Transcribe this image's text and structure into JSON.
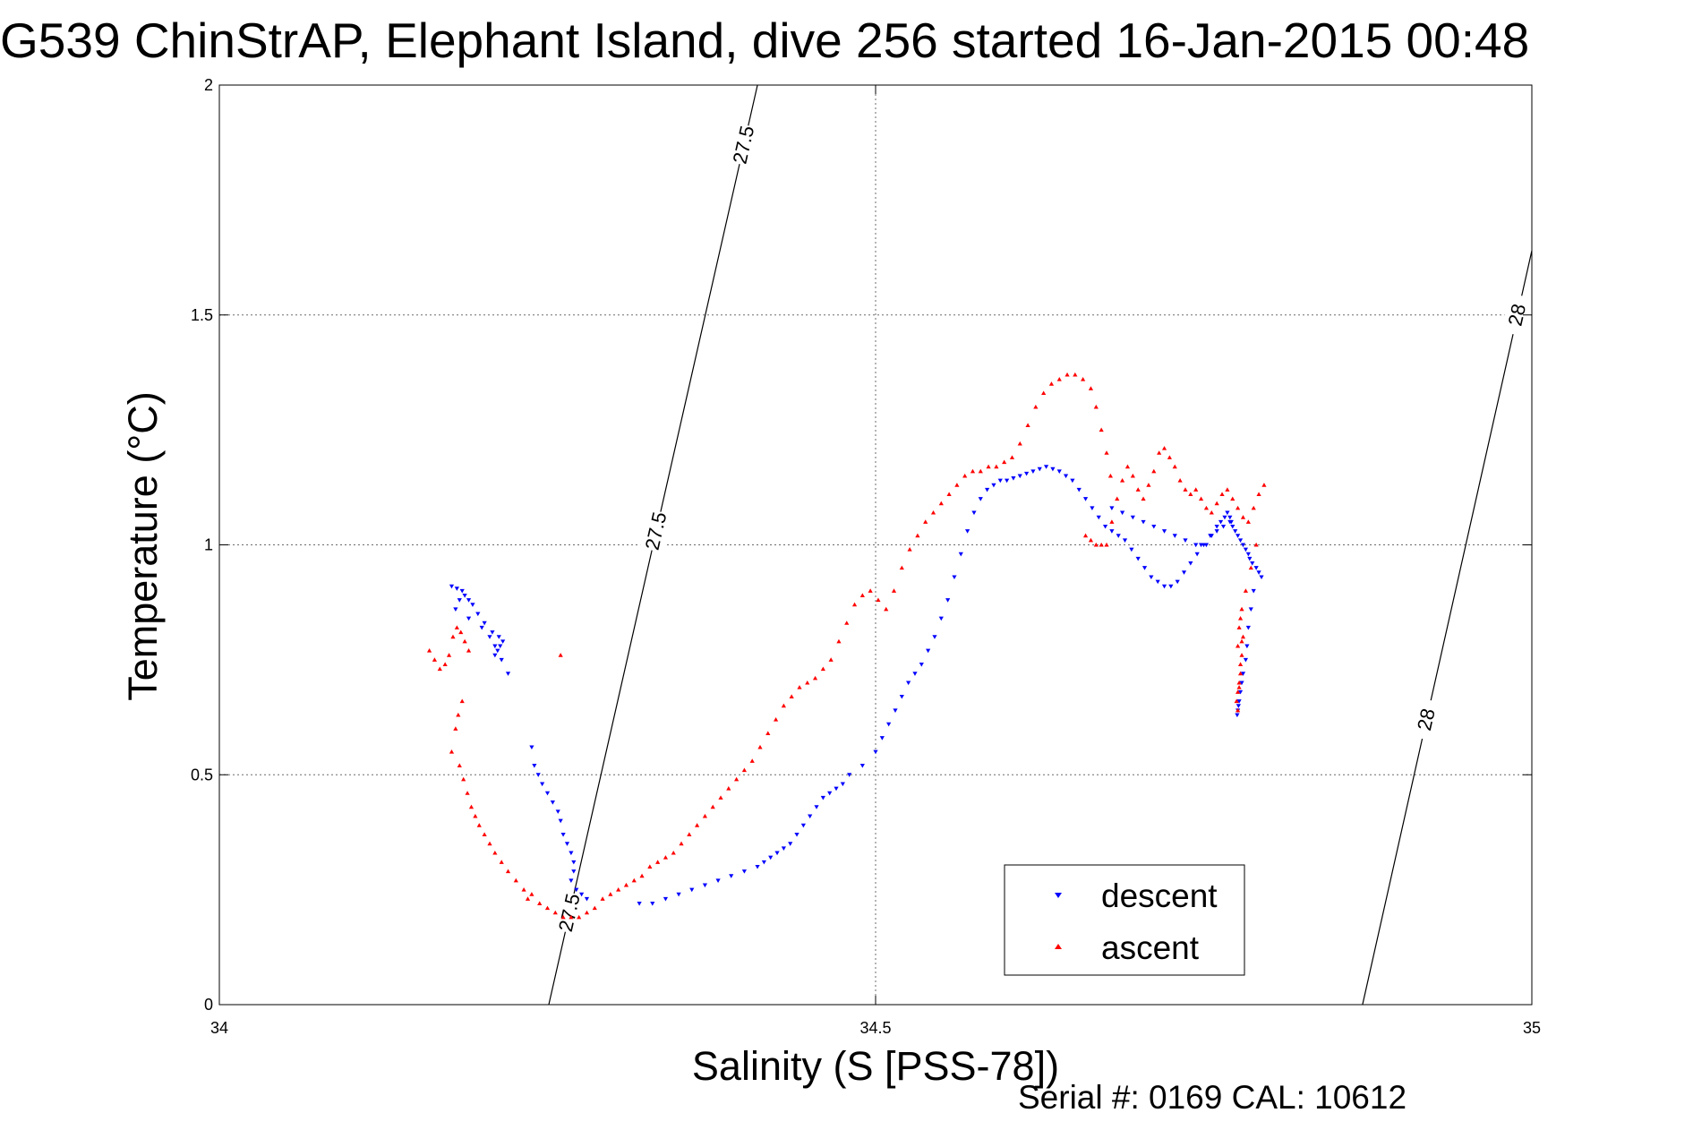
{
  "title": "G539 ChinStrAP, Elephant Island, dive 256 started 16-Jan-2015 00:48",
  "footer": "Serial #: 0169 CAL: 10612",
  "chart_data": {
    "type": "scatter",
    "title": "G539 ChinStrAP, Elephant Island, dive 256 started 16-Jan-2015 00:48",
    "xlabel": "Salinity (S [PSS-78])",
    "ylabel": "Temperature (°C)",
    "xlim": [
      34,
      35
    ],
    "ylim": [
      0,
      2
    ],
    "xticks": [
      "34",
      "34.5",
      "35"
    ],
    "yticks": [
      "0",
      "0.5",
      "1",
      "1.5",
      "2"
    ],
    "grid": true,
    "legend_position": "bottom-right",
    "legend": [
      "descent",
      "ascent"
    ],
    "isopycnals": [
      {
        "level": "27.5",
        "points": [
          [
            34.251,
            0.0
          ],
          [
            34.41,
            2.0
          ]
        ],
        "labels_at_y": [
          0.2,
          1.03,
          1.87
        ]
      },
      {
        "level": "28",
        "points": [
          [
            34.871,
            0.0
          ],
          [
            35.0,
            1.64
          ]
        ],
        "labels_at_y": [
          0.62,
          1.5
        ]
      }
    ],
    "series": [
      {
        "name": "descent",
        "marker": "triangle-down",
        "color": "#0000ff",
        "x": [
          34.177,
          34.181,
          34.185,
          34.187,
          34.19,
          34.193,
          34.197,
          34.202,
          34.206,
          34.21,
          34.215,
          34.22,
          34.183,
          34.18,
          34.19,
          34.2,
          34.208,
          34.213,
          34.216,
          34.214,
          34.212,
          34.21,
          34.238,
          34.24,
          34.243,
          34.246,
          34.25,
          34.254,
          34.258,
          34.26,
          34.262,
          34.265,
          34.268,
          34.27,
          34.27,
          34.268,
          34.272,
          34.276,
          34.28,
          34.32,
          34.33,
          34.34,
          34.35,
          34.36,
          34.37,
          34.38,
          34.39,
          34.4,
          34.41,
          34.415,
          34.42,
          34.425,
          34.43,
          34.435,
          34.44,
          34.445,
          34.45,
          34.455,
          34.46,
          34.465,
          34.47,
          34.475,
          34.48,
          34.49,
          34.5,
          34.505,
          34.51,
          34.515,
          34.52,
          34.525,
          34.53,
          34.535,
          34.54,
          34.545,
          34.55,
          34.555,
          34.56,
          34.565,
          34.57,
          34.575,
          34.58,
          34.585,
          34.59,
          34.595,
          34.6,
          34.605,
          34.61,
          34.615,
          34.62,
          34.625,
          34.63,
          34.635,
          34.64,
          34.645,
          34.65,
          34.655,
          34.66,
          34.665,
          34.67,
          34.675,
          34.68,
          34.685,
          34.69,
          34.695,
          34.7,
          34.705,
          34.71,
          34.715,
          34.72,
          34.725,
          34.73,
          34.735,
          34.74,
          34.745,
          34.75,
          34.755,
          34.76,
          34.765,
          34.77,
          34.68,
          34.688,
          34.696,
          34.704,
          34.712,
          34.72,
          34.728,
          34.736,
          34.744,
          34.748,
          34.752,
          34.756,
          34.76,
          34.763,
          34.766,
          34.768,
          34.77,
          34.771,
          34.772,
          34.774,
          34.776,
          34.778,
          34.78,
          34.782,
          34.784,
          34.785,
          34.787,
          34.79,
          34.792,
          34.794,
          34.788,
          34.786,
          34.784,
          34.783,
          34.782,
          34.78,
          34.779,
          34.778,
          34.777,
          34.776,
          34.7755,
          34.7765
        ],
        "y": [
          0.91,
          0.905,
          0.9,
          0.89,
          0.88,
          0.87,
          0.85,
          0.83,
          0.8,
          0.78,
          0.75,
          0.72,
          0.88,
          0.86,
          0.84,
          0.82,
          0.81,
          0.8,
          0.79,
          0.78,
          0.77,
          0.76,
          0.56,
          0.52,
          0.5,
          0.48,
          0.46,
          0.44,
          0.42,
          0.4,
          0.37,
          0.35,
          0.33,
          0.31,
          0.29,
          0.27,
          0.25,
          0.24,
          0.23,
          0.22,
          0.22,
          0.23,
          0.24,
          0.25,
          0.26,
          0.27,
          0.28,
          0.29,
          0.3,
          0.31,
          0.32,
          0.33,
          0.34,
          0.35,
          0.37,
          0.39,
          0.41,
          0.43,
          0.45,
          0.46,
          0.47,
          0.48,
          0.5,
          0.52,
          0.55,
          0.58,
          0.61,
          0.64,
          0.67,
          0.7,
          0.72,
          0.74,
          0.77,
          0.8,
          0.84,
          0.88,
          0.93,
          0.98,
          1.03,
          1.07,
          1.1,
          1.12,
          1.13,
          1.14,
          1.14,
          1.145,
          1.15,
          1.155,
          1.16,
          1.165,
          1.17,
          1.165,
          1.16,
          1.15,
          1.14,
          1.12,
          1.1,
          1.08,
          1.06,
          1.04,
          1.03,
          1.02,
          1.01,
          0.99,
          0.97,
          0.95,
          0.93,
          0.92,
          0.91,
          0.91,
          0.92,
          0.94,
          0.96,
          0.98,
          1.0,
          1.02,
          1.03,
          1.04,
          1.05,
          1.08,
          1.07,
          1.06,
          1.05,
          1.04,
          1.03,
          1.02,
          1.01,
          1.0,
          1.0,
          1.0,
          1.02,
          1.04,
          1.05,
          1.06,
          1.07,
          1.06,
          1.05,
          1.04,
          1.03,
          1.02,
          1.01,
          1.0,
          0.99,
          0.98,
          0.97,
          0.96,
          0.95,
          0.94,
          0.93,
          0.9,
          0.86,
          0.82,
          0.78,
          0.75,
          0.72,
          0.7,
          0.68,
          0.66,
          0.64,
          0.63,
          0.65
        ]
      },
      {
        "name": "ascent",
        "marker": "triangle-up",
        "color": "#ff0000",
        "x": [
          34.16,
          34.164,
          34.168,
          34.172,
          34.175,
          34.178,
          34.181,
          34.184,
          34.187,
          34.19,
          34.185,
          34.182,
          34.18,
          34.177,
          34.183,
          34.186,
          34.189,
          34.192,
          34.195,
          34.198,
          34.202,
          34.206,
          34.21,
          34.215,
          34.22,
          34.226,
          34.232,
          34.238,
          34.244,
          34.25,
          34.256,
          34.262,
          34.268,
          34.274,
          34.28,
          34.286,
          34.292,
          34.298,
          34.304,
          34.31,
          34.316,
          34.322,
          34.328,
          34.334,
          34.34,
          34.346,
          34.352,
          34.358,
          34.364,
          34.37,
          34.376,
          34.382,
          34.388,
          34.394,
          34.4,
          34.406,
          34.412,
          34.418,
          34.424,
          34.43,
          34.436,
          34.442,
          34.448,
          34.454,
          34.46,
          34.466,
          34.472,
          34.478,
          34.484,
          34.49,
          34.496,
          34.502,
          34.508,
          34.514,
          34.52,
          34.526,
          34.532,
          34.538,
          34.544,
          34.55,
          34.556,
          34.562,
          34.568,
          34.574,
          34.58,
          34.586,
          34.592,
          34.598,
          34.604,
          34.61,
          34.616,
          34.622,
          34.628,
          34.634,
          34.64,
          34.646,
          34.652,
          34.658,
          34.664,
          34.668,
          34.672,
          34.676,
          34.679,
          34.66,
          34.664,
          34.668,
          34.672,
          34.676,
          34.68,
          34.684,
          34.688,
          34.692,
          34.696,
          34.7,
          34.704,
          34.708,
          34.712,
          34.716,
          34.72,
          34.724,
          34.728,
          34.732,
          34.736,
          34.74,
          34.744,
          34.748,
          34.752,
          34.756,
          34.76,
          34.764,
          34.768,
          34.772,
          34.776,
          34.78,
          34.784,
          34.788,
          34.792,
          34.796,
          34.79,
          34.786,
          34.782,
          34.779,
          34.777,
          34.776,
          34.778,
          34.78,
          34.779,
          34.778,
          34.777,
          34.776,
          34.775,
          34.776,
          34.777,
          34.778,
          34.779,
          34.26,
          34.235
        ],
        "y": [
          0.77,
          0.75,
          0.73,
          0.74,
          0.76,
          0.8,
          0.82,
          0.81,
          0.79,
          0.77,
          0.66,
          0.63,
          0.6,
          0.55,
          0.52,
          0.49,
          0.46,
          0.43,
          0.41,
          0.39,
          0.37,
          0.35,
          0.33,
          0.31,
          0.29,
          0.27,
          0.25,
          0.24,
          0.22,
          0.21,
          0.2,
          0.19,
          0.19,
          0.19,
          0.2,
          0.21,
          0.23,
          0.24,
          0.25,
          0.26,
          0.27,
          0.28,
          0.3,
          0.31,
          0.32,
          0.33,
          0.35,
          0.37,
          0.39,
          0.41,
          0.43,
          0.45,
          0.47,
          0.49,
          0.51,
          0.53,
          0.56,
          0.59,
          0.62,
          0.65,
          0.67,
          0.69,
          0.7,
          0.71,
          0.73,
          0.75,
          0.79,
          0.83,
          0.87,
          0.89,
          0.9,
          0.88,
          0.86,
          0.9,
          0.95,
          0.99,
          1.02,
          1.05,
          1.07,
          1.09,
          1.11,
          1.13,
          1.15,
          1.16,
          1.16,
          1.17,
          1.17,
          1.18,
          1.19,
          1.22,
          1.26,
          1.3,
          1.33,
          1.35,
          1.36,
          1.37,
          1.37,
          1.36,
          1.34,
          1.3,
          1.25,
          1.2,
          1.15,
          1.02,
          1.01,
          1.0,
          1.0,
          1.0,
          1.05,
          1.1,
          1.14,
          1.17,
          1.15,
          1.12,
          1.1,
          1.13,
          1.16,
          1.2,
          1.21,
          1.19,
          1.17,
          1.14,
          1.12,
          1.11,
          1.12,
          1.1,
          1.08,
          1.07,
          1.09,
          1.11,
          1.12,
          1.1,
          1.08,
          1.06,
          1.05,
          1.08,
          1.11,
          1.13,
          1.0,
          0.95,
          0.9,
          0.86,
          0.82,
          0.78,
          0.84,
          0.8,
          0.76,
          0.72,
          0.7,
          0.68,
          0.66,
          0.64,
          0.69,
          0.74,
          0.79,
          0.76,
          0.23
        ]
      }
    ]
  }
}
